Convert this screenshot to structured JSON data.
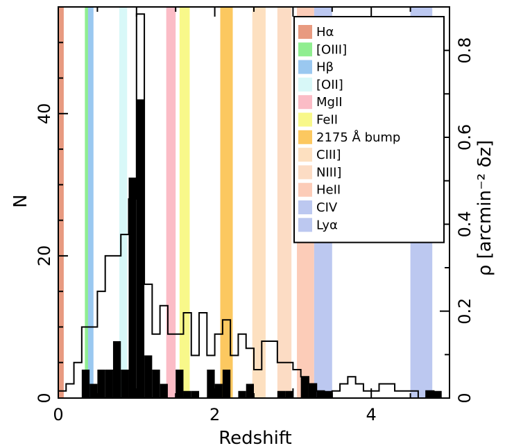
{
  "chart_data": {
    "type": "bar",
    "xlabel": "Redshift",
    "ylabel": "N",
    "y2label": "ρ [arcmin⁻² δz]",
    "xlim": [
      0,
      5.0
    ],
    "ylim": [
      0,
      55
    ],
    "y2lim": [
      0,
      0.9
    ],
    "x_ticks": [
      "0",
      "2",
      "4"
    ],
    "y_ticks": [
      "0",
      "20",
      "40"
    ],
    "y2_ticks": [
      "0",
      "0.2",
      "0.4",
      "0.6",
      "0.8"
    ],
    "bin_width": 0.1,
    "bin_starts": [
      0.0,
      0.1,
      0.2,
      0.3,
      0.4,
      0.5,
      0.6,
      0.7,
      0.8,
      0.9,
      1.0,
      1.1,
      1.2,
      1.3,
      1.4,
      1.5,
      1.6,
      1.7,
      1.8,
      1.9,
      2.0,
      2.1,
      2.2,
      2.3,
      2.4,
      2.5,
      2.6,
      2.7,
      2.8,
      2.9,
      3.0,
      3.1,
      3.2,
      3.3,
      3.4,
      3.5,
      3.6,
      3.7,
      3.8,
      3.9,
      4.0,
      4.1,
      4.2,
      4.3,
      4.4,
      4.5,
      4.6,
      4.7,
      4.8
    ],
    "series": [
      {
        "name": "",
        "style": "open-step",
        "values": [
          1,
          2,
          5,
          10,
          10,
          15,
          20,
          20,
          23,
          28,
          54,
          16,
          9,
          13,
          9,
          9,
          12,
          6,
          12,
          6,
          9,
          11,
          6,
          9,
          7,
          4,
          8,
          8,
          5,
          5,
          4,
          3,
          2,
          1,
          0,
          1,
          2,
          3,
          2,
          1,
          1,
          2,
          2,
          1,
          1,
          1,
          0,
          1,
          0
        ]
      },
      {
        "name": "",
        "style": "filled",
        "values": [
          0,
          0,
          0,
          4,
          2,
          4,
          4,
          8,
          4,
          31,
          42,
          6,
          4,
          2,
          0,
          4,
          1,
          1,
          0,
          4,
          2,
          4,
          0,
          1,
          2,
          0,
          0,
          0,
          1,
          1,
          0,
          3,
          2,
          1,
          1,
          0,
          0,
          0,
          0,
          0,
          0,
          0,
          0,
          0,
          0,
          0,
          0,
          1,
          1
        ]
      }
    ],
    "lines": [
      {
        "label": "Hα",
        "color": "#e89a80",
        "x": [
          0.0,
          0.07
        ]
      },
      {
        "label": "[OIII]",
        "color": "#90ee90",
        "x": [
          0.34,
          0.4
        ]
      },
      {
        "label": "Hβ",
        "color": "#9ac8f0",
        "x": [
          0.38,
          0.45
        ]
      },
      {
        "label": "[OII]",
        "color": "#d8f8f8",
        "x": [
          0.78,
          0.88
        ]
      },
      {
        "label": "MgII",
        "color": "#fbbcc6",
        "x": [
          1.38,
          1.5
        ]
      },
      {
        "label": "FeII",
        "color": "#f8f88a",
        "x": [
          1.55,
          1.68
        ]
      },
      {
        "label": "2175 Å bump",
        "color": "#fcc860",
        "x": [
          2.07,
          2.23
        ]
      },
      {
        "label": "CIII]",
        "color": "#fde0c0",
        "x": [
          2.48,
          2.65
        ]
      },
      {
        "label": "NIII]",
        "color": "#fcdcc4",
        "x": [
          2.8,
          2.98
        ]
      },
      {
        "label": "HeII",
        "color": "#fcccb8",
        "x": [
          3.05,
          3.27
        ]
      },
      {
        "label": "CIV",
        "color": "#bcc8f0",
        "x": [
          3.27,
          3.5
        ]
      },
      {
        "label": "Lyα",
        "color": "#bcc8f0",
        "x": [
          4.5,
          4.78
        ]
      }
    ],
    "legend_position": "top-right",
    "grid": false
  }
}
